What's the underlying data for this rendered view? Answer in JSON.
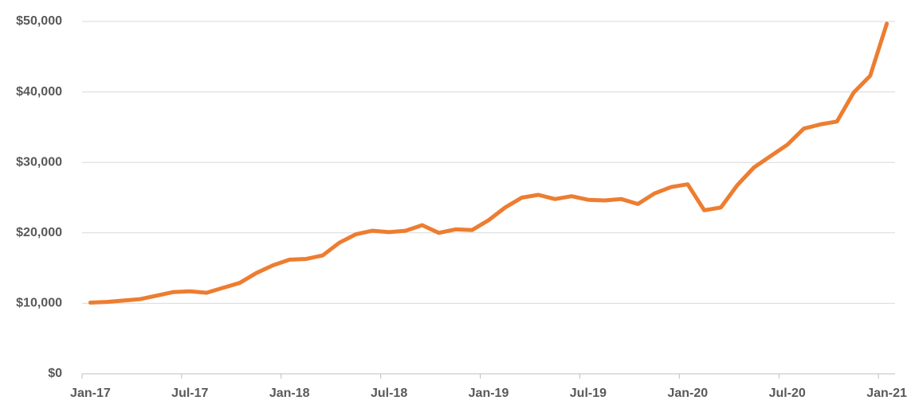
{
  "chart_data": {
    "type": "line",
    "categories": [
      "Jan-17",
      null,
      null,
      null,
      null,
      null,
      "Jul-17",
      null,
      null,
      null,
      null,
      null,
      "Jan-18",
      null,
      null,
      null,
      null,
      null,
      "Jul-18",
      null,
      null,
      null,
      null,
      null,
      "Jan-19",
      null,
      null,
      null,
      null,
      null,
      "Jul-19",
      null,
      null,
      null,
      null,
      null,
      "Jan-20",
      null,
      null,
      null,
      null,
      null,
      "Jul-20",
      null,
      null,
      null,
      null,
      null,
      "Jan-21"
    ],
    "values": [
      10100,
      10200,
      10400,
      10600,
      11100,
      11600,
      11700,
      11500,
      12200,
      12900,
      14300,
      15400,
      16200,
      16300,
      16800,
      18600,
      19800,
      20300,
      20100,
      20300,
      21100,
      20000,
      20500,
      20400,
      21800,
      23600,
      25000,
      25400,
      24800,
      25200,
      24700,
      24600,
      24800,
      24100,
      25600,
      26500,
      26900,
      23200,
      23600,
      26800,
      29300,
      30900,
      32500,
      34800,
      35400,
      35800,
      39900,
      42300,
      49700
    ],
    "color": "#ed7d31",
    "ylim": [
      0,
      50000
    ],
    "yticks": [
      {
        "value": 0,
        "label": "$0"
      },
      {
        "value": 10000,
        "label": "$10,000"
      },
      {
        "value": 20000,
        "label": "$20,000"
      },
      {
        "value": 30000,
        "label": "$30,000"
      },
      {
        "value": 40000,
        "label": "$40,000"
      },
      {
        "value": 50000,
        "label": "$50,000"
      }
    ],
    "grid": true
  }
}
